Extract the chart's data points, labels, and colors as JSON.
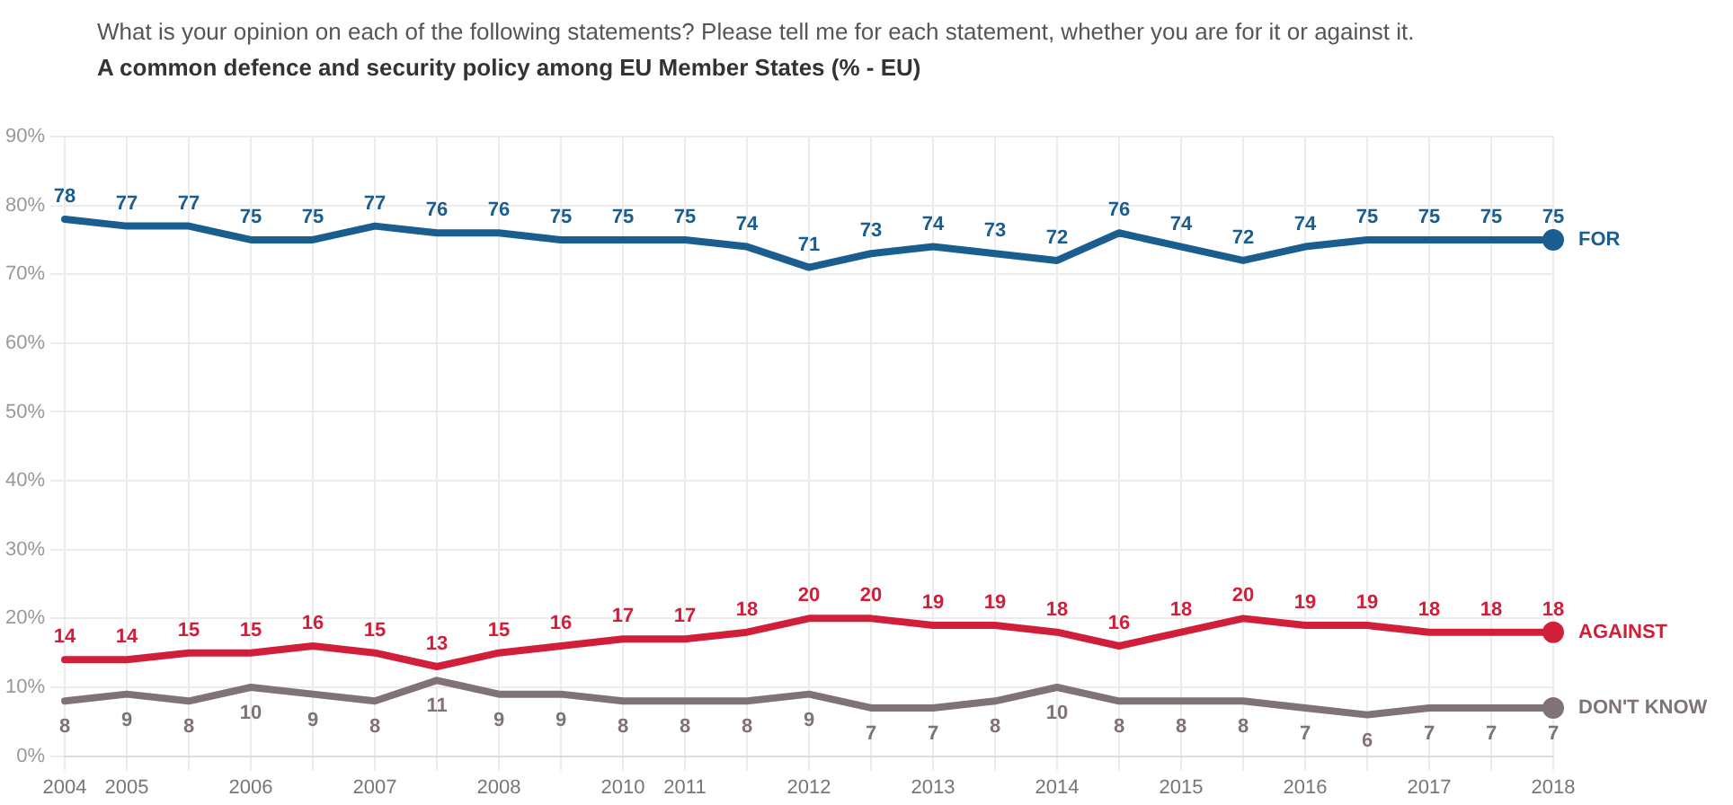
{
  "chart_data": {
    "type": "line",
    "subtitle": "What is your opinion on each of the following statements? Please tell me for each statement, whether you are for it or against it.",
    "title": "A common defence and security policy among EU Member States (% - EU)",
    "categories": [
      "2004",
      "2005",
      null,
      "2006",
      null,
      "2007",
      null,
      "2008",
      null,
      "2010",
      "2011",
      null,
      "2012",
      null,
      "2013",
      null,
      "2014",
      null,
      "2015",
      null,
      "2016",
      null,
      "2017",
      null,
      "2018"
    ],
    "series": [
      {
        "name": "FOR",
        "color": "#1a5e8f",
        "values": [
          78,
          77,
          77,
          75,
          75,
          77,
          76,
          76,
          75,
          75,
          75,
          74,
          71,
          73,
          74,
          73,
          72,
          76,
          74,
          72,
          74,
          75,
          75,
          75,
          75
        ]
      },
      {
        "name": "AGAINST",
        "color": "#d11f3a",
        "values": [
          14,
          14,
          15,
          15,
          16,
          15,
          13,
          15,
          16,
          17,
          17,
          18,
          20,
          20,
          19,
          19,
          18,
          16,
          18,
          20,
          19,
          19,
          18,
          18,
          18
        ]
      },
      {
        "name": "DON'T KNOW",
        "color": "#7f7377",
        "values": [
          8,
          9,
          8,
          10,
          9,
          8,
          11,
          9,
          9,
          8,
          8,
          8,
          9,
          7,
          7,
          8,
          10,
          8,
          8,
          8,
          7,
          6,
          7,
          7,
          7
        ]
      }
    ],
    "ylim": [
      0,
      90
    ],
    "yticks": [
      {
        "value": 0,
        "label": "0%"
      },
      {
        "value": 10,
        "label": "10%"
      },
      {
        "value": 20,
        "label": "20%"
      },
      {
        "value": 30,
        "label": "30%"
      },
      {
        "value": 40,
        "label": "40%"
      },
      {
        "value": 50,
        "label": "50%"
      },
      {
        "value": 60,
        "label": "60%"
      },
      {
        "value": 70,
        "label": "70%"
      },
      {
        "value": 80,
        "label": "80%"
      },
      {
        "value": 90,
        "label": "90%"
      }
    ],
    "grid": true,
    "data_labels": true,
    "marker": "none",
    "line_style": "solid",
    "legend": false
  }
}
